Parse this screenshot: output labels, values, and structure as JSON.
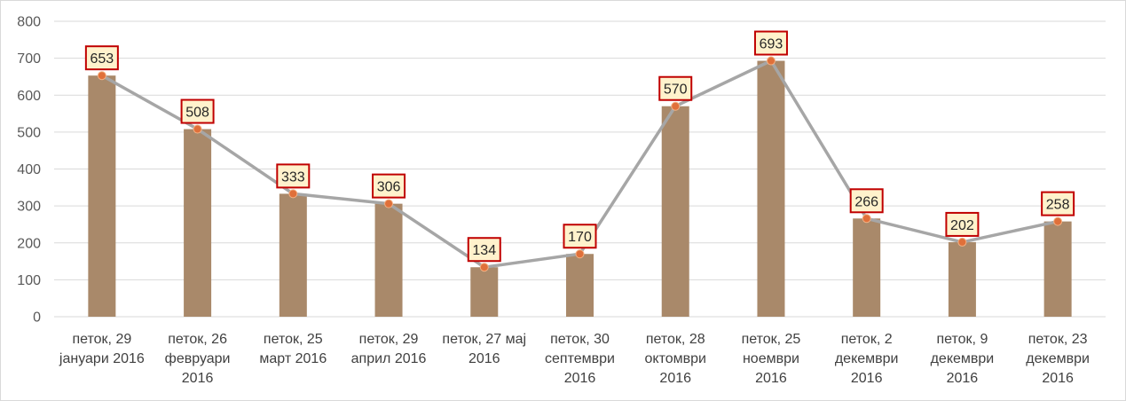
{
  "chart_data": {
    "type": "bar",
    "title": "",
    "xlabel": "",
    "ylabel": "",
    "ylim": [
      0,
      800
    ],
    "yticks": [
      0,
      100,
      200,
      300,
      400,
      500,
      600,
      700,
      800
    ],
    "grid": true,
    "legend": "none",
    "categories": [
      [
        "петок, 29",
        "јануари 2016"
      ],
      [
        "петок, 26",
        "февруари",
        "2016"
      ],
      [
        "петок, 25",
        "март 2016"
      ],
      [
        "петок, 29",
        "април 2016"
      ],
      [
        "петок, 27 мај",
        "2016"
      ],
      [
        "петок, 30",
        "септември",
        "2016"
      ],
      [
        "петок, 28",
        "октомври",
        "2016"
      ],
      [
        "петок, 25",
        "ноември",
        "2016"
      ],
      [
        "петок, 2",
        "декември",
        "2016"
      ],
      [
        "петок, 9",
        "декември",
        "2016"
      ],
      [
        "петок, 23",
        "декември",
        "2016"
      ]
    ],
    "series": [
      {
        "type": "bar",
        "values": [
          653,
          508,
          333,
          306,
          134,
          170,
          570,
          693,
          266,
          202,
          258
        ],
        "color": "#a9896a"
      },
      {
        "type": "line",
        "values": [
          653,
          508,
          333,
          306,
          134,
          170,
          570,
          693,
          266,
          202,
          258
        ],
        "color": "#a6a6a6",
        "marker_color": "#e0703a"
      }
    ],
    "data_labels": {
      "values": [
        "653",
        "508",
        "333",
        "306",
        "134",
        "170",
        "570",
        "693",
        "266",
        "202",
        "258"
      ],
      "fill": "#fff2cc",
      "border": "#c00000"
    }
  }
}
